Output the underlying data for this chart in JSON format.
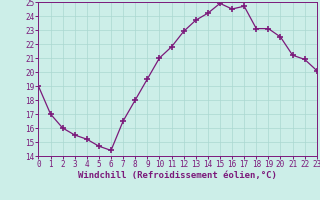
{
  "x": [
    0,
    1,
    2,
    3,
    4,
    5,
    6,
    7,
    8,
    9,
    10,
    11,
    12,
    13,
    14,
    15,
    16,
    17,
    18,
    19,
    20,
    21,
    22,
    23
  ],
  "y": [
    19,
    17,
    16,
    15.5,
    15.2,
    14.7,
    14.4,
    16.5,
    18,
    19.5,
    21,
    21.8,
    22.9,
    23.7,
    24.2,
    24.9,
    24.5,
    24.7,
    23.1,
    23.1,
    22.5,
    21.2,
    20.9,
    20.1
  ],
  "line_color": "#7b1a7b",
  "marker": "+",
  "marker_size": 4,
  "marker_lw": 1.2,
  "bg_color": "#cceee8",
  "grid_color": "#aad8d0",
  "xlabel": "Windchill (Refroidissement éolien,°C)",
  "xlim": [
    0,
    23
  ],
  "ylim": [
    14,
    25
  ],
  "yticks": [
    14,
    15,
    16,
    17,
    18,
    19,
    20,
    21,
    22,
    23,
    24,
    25
  ],
  "xticks": [
    0,
    1,
    2,
    3,
    4,
    5,
    6,
    7,
    8,
    9,
    10,
    11,
    12,
    13,
    14,
    15,
    16,
    17,
    18,
    19,
    20,
    21,
    22,
    23
  ],
  "tick_color": "#7b1a7b",
  "label_color": "#7b1a7b",
  "axis_color": "#7b1a7b",
  "tick_fontsize": 5.5,
  "xlabel_fontsize": 6.5,
  "line_width": 0.9
}
